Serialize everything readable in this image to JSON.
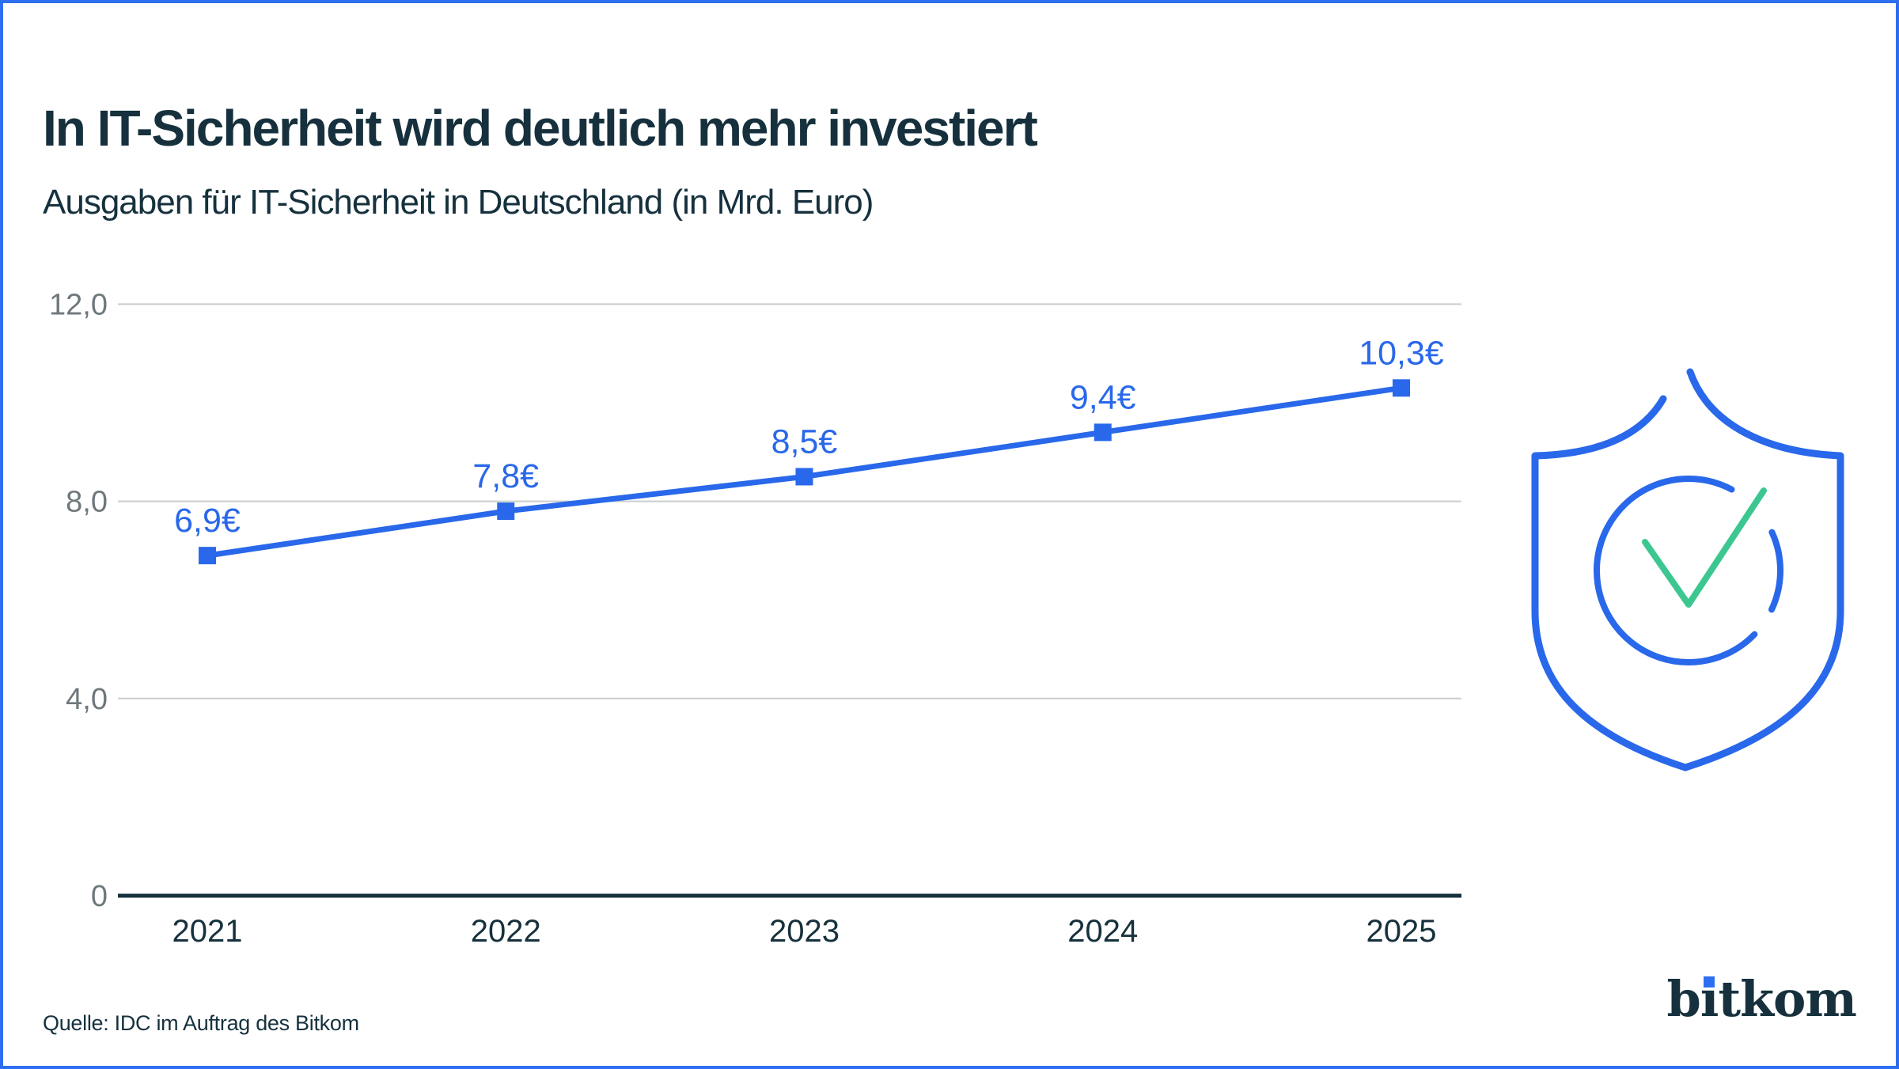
{
  "header": {
    "title": "In IT-Sicherheit wird deutlich mehr investiert",
    "subtitle": "Ausgaben für IT-Sicherheit in Deutschland (in Mrd. Euro)"
  },
  "chart_data": {
    "type": "line",
    "title": "Ausgaben für IT-Sicherheit in Deutschland (in Mrd. Euro)",
    "categories": [
      "2021",
      "2022",
      "2023",
      "2024",
      "2025"
    ],
    "series": [
      {
        "name": "Ausgaben für IT-Sicherheit in Mrd. Euro",
        "values": [
          6.9,
          7.8,
          8.5,
          9.4,
          10.3
        ],
        "labels": [
          "6,9€",
          "7,8€",
          "8,5€",
          "9,4€",
          "10,3€"
        ],
        "color": "#2968ea",
        "marker": "square"
      }
    ],
    "yticks": [
      {
        "value": 12,
        "label": "12,0"
      },
      {
        "value": 8,
        "label": "8,0"
      },
      {
        "value": 4,
        "label": "4,0"
      },
      {
        "value": 0,
        "label": "0"
      }
    ],
    "ylim": [
      0,
      12
    ],
    "xlabel": "",
    "ylabel": "",
    "grid": "horizontal",
    "legend": "none"
  },
  "footer": {
    "source": "Quelle: IDC im Auftrag des Bitkom"
  },
  "brand": {
    "name": "bitkom",
    "display": {
      "pre": "b",
      "i_glyph": "ı",
      "post": "tkom"
    }
  },
  "icons": {
    "shield_check": {
      "meaning": "shield-with-checkmark",
      "outline_color": "#2968ea",
      "check_color": "#3cc790"
    }
  },
  "colors": {
    "accent_blue": "#2968ea",
    "border_blue": "#2e6ff2",
    "check_green": "#3cc790",
    "dark_text": "#16313d",
    "axis_gray": "#6e787c",
    "gridline_gray": "#c9cdce",
    "background": "#ffffff"
  }
}
